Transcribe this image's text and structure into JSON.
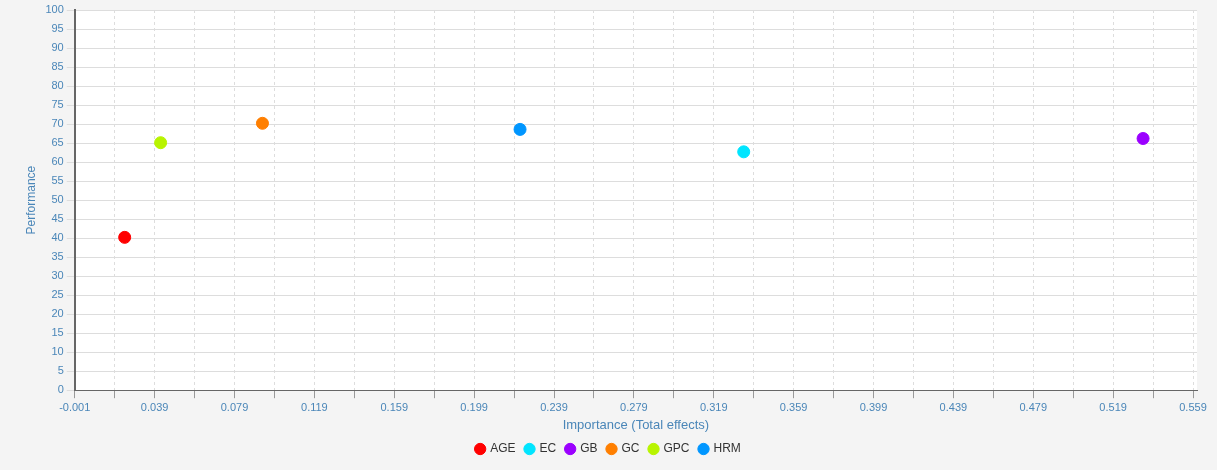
{
  "chart_data": {
    "type": "scatter",
    "xlabel": "Importance (Total effects)",
    "ylabel": "Performance",
    "series": [
      {
        "name": "AGE",
        "color": "#ff0000",
        "x": [
          0.024
        ],
        "values": [
          40.2
        ]
      },
      {
        "name": "EC",
        "color": "#00e5ff",
        "x": [
          0.334
        ],
        "values": [
          62.7
        ]
      },
      {
        "name": "GB",
        "color": "#9b00ff",
        "x": [
          0.534
        ],
        "values": [
          66.2
        ]
      },
      {
        "name": "GC",
        "color": "#ff7f00",
        "x": [
          0.093
        ],
        "values": [
          70.2
        ]
      },
      {
        "name": "GPC",
        "color": "#b8f400",
        "x": [
          0.042
        ],
        "values": [
          65.1
        ]
      },
      {
        "name": "HRM",
        "color": "#0096ff",
        "x": [
          0.222
        ],
        "values": [
          68.6
        ]
      }
    ],
    "xlim": [
      -0.001,
      0.561
    ],
    "xticks": [
      -0.001,
      {
        "value": 0.019,
        "label": null
      },
      0.039,
      {
        "value": 0.059,
        "label": null
      },
      0.079,
      {
        "value": 0.099,
        "label": null
      },
      0.119,
      {
        "value": 0.139,
        "label": null
      },
      0.159,
      {
        "value": 0.179,
        "label": null
      },
      0.199,
      {
        "value": 0.219,
        "label": null
      },
      0.239,
      {
        "value": 0.259,
        "label": null
      },
      0.279,
      {
        "value": 0.299,
        "label": null
      },
      0.319,
      {
        "value": 0.339,
        "label": null
      },
      0.359,
      {
        "value": 0.379,
        "label": null
      },
      0.399,
      {
        "value": 0.419,
        "label": null
      },
      0.439,
      {
        "value": 0.459,
        "label": null
      },
      0.479,
      {
        "value": 0.499,
        "label": null
      },
      0.519,
      {
        "value": 0.539,
        "label": null
      },
      0.559
    ],
    "ylim": [
      0,
      100
    ],
    "yticks": [
      0,
      5,
      10,
      15,
      20,
      25,
      30,
      35,
      40,
      45,
      50,
      55,
      60,
      65,
      70,
      75,
      80,
      85,
      90,
      95,
      100
    ],
    "grid": true,
    "legend": "bottom",
    "marker": "circle"
  }
}
